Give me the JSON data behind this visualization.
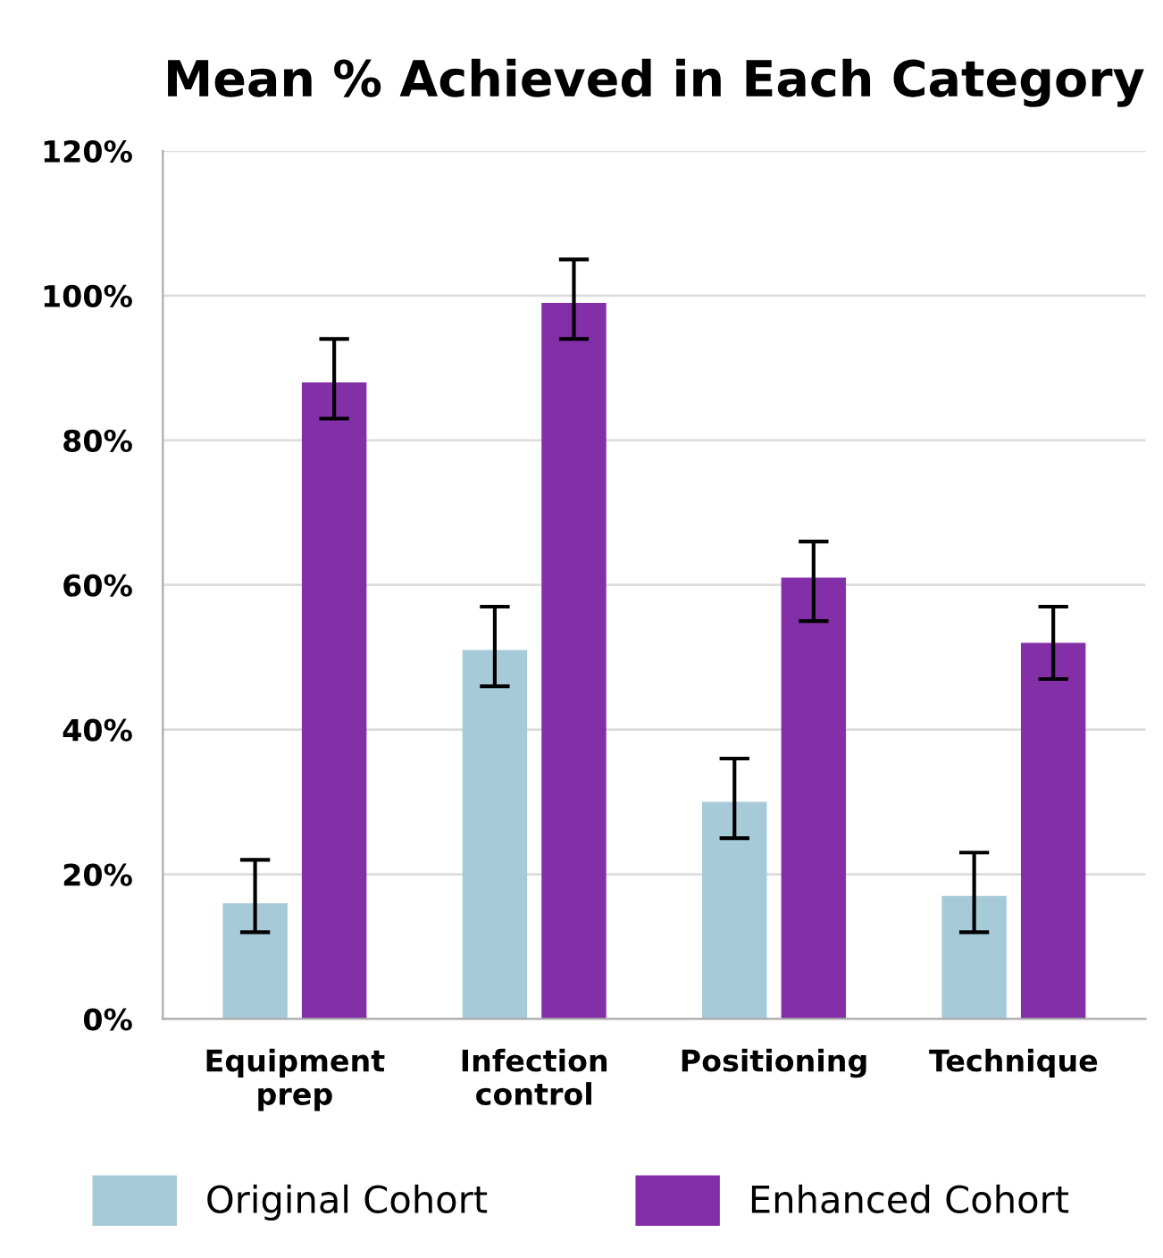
{
  "chart_data": {
    "type": "bar",
    "title": "Mean % Achieved in Each Category",
    "categories": [
      "Equipment\nprep",
      "Infection\ncontrol",
      "Positioning",
      "Technique"
    ],
    "series": [
      {
        "name": "Original Cohort",
        "color": "#a6cad8",
        "values": [
          16,
          51,
          30,
          17
        ],
        "errors": [
          [
            12,
            22
          ],
          [
            46,
            57
          ],
          [
            25,
            36
          ],
          [
            12,
            23
          ]
        ]
      },
      {
        "name": "Enhanced Cohort",
        "color": "#8330a8",
        "values": [
          88,
          99,
          61,
          52
        ],
        "errors": [
          [
            83,
            94
          ],
          [
            94,
            105
          ],
          [
            55,
            66
          ],
          [
            47,
            57
          ]
        ]
      }
    ],
    "ylim": [
      0,
      120
    ],
    "yticks": [
      {
        "value": 0,
        "label": "0%"
      },
      {
        "value": 20,
        "label": "20%"
      },
      {
        "value": 40,
        "label": "40%"
      },
      {
        "value": 60,
        "label": "60%"
      },
      {
        "value": 80,
        "label": "80%"
      },
      {
        "value": 100,
        "label": "100%"
      },
      {
        "value": 120,
        "label": "120%"
      }
    ],
    "grid": "y",
    "legend": "bottom"
  }
}
